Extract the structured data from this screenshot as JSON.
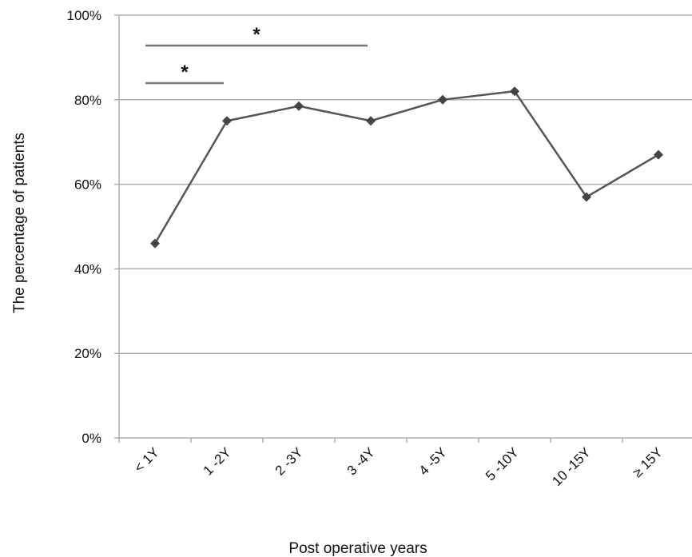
{
  "chart_data": {
    "type": "line",
    "categories": [
      "< 1Y",
      "1 -2Y",
      "2 -3Y",
      "3 -4Y",
      "4 -5Y",
      "5 -10Y",
      "10 -15Y",
      "≥ 15Y"
    ],
    "values": [
      46,
      75,
      78.5,
      75,
      80,
      82,
      57,
      67
    ],
    "ylim": [
      0,
      100
    ],
    "yticks": [
      0,
      20,
      40,
      60,
      80,
      100
    ],
    "ytick_labels": [
      "0%",
      "20%",
      "40%",
      "60%",
      "80%",
      "100%"
    ],
    "xlabel": "Post operative years",
    "ylabel": "The percentage of patients",
    "grid": true,
    "significance": [
      {
        "from": "< 1Y",
        "to": "3 -4Y",
        "label": "*"
      },
      {
        "from": "< 1Y",
        "to": "1 -2Y",
        "label": "*"
      }
    ],
    "colors": {
      "line": "#555555",
      "marker": "#444444",
      "grid": "#b0b0b0",
      "bracket": "#777777"
    }
  }
}
